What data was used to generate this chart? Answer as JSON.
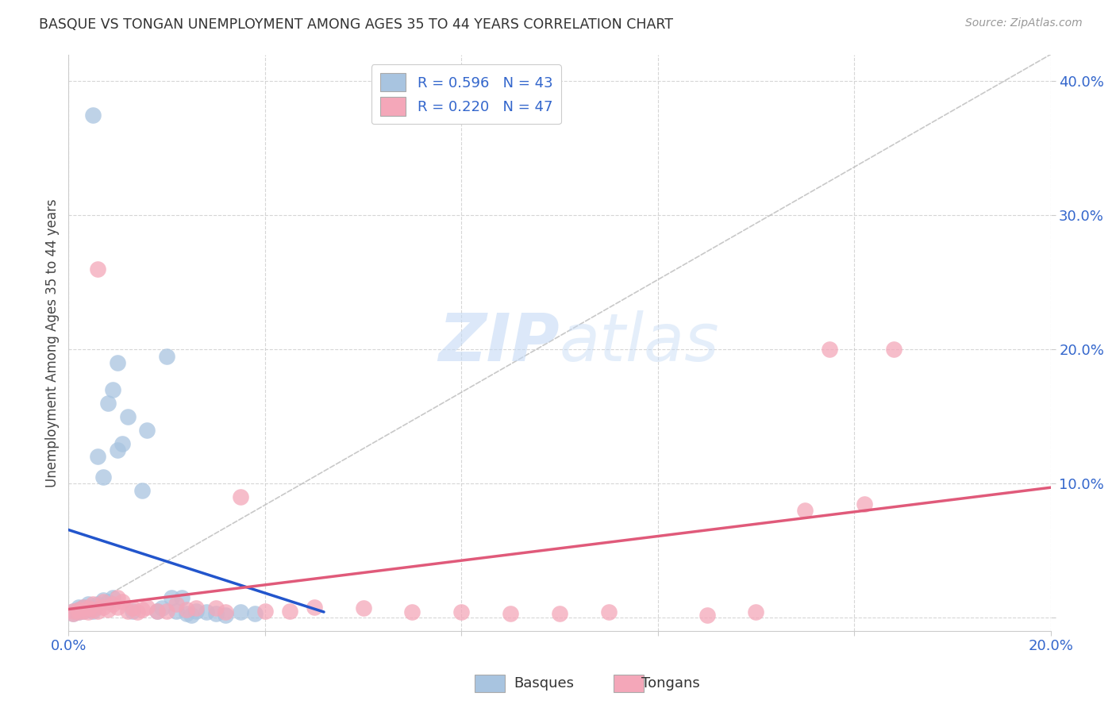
{
  "title": "BASQUE VS TONGAN UNEMPLOYMENT AMONG AGES 35 TO 44 YEARS CORRELATION CHART",
  "source": "Source: ZipAtlas.com",
  "ylabel": "Unemployment Among Ages 35 to 44 years",
  "xlim": [
    0.0,
    0.2
  ],
  "ylim": [
    -0.01,
    0.42
  ],
  "basque_color": "#a8c4e0",
  "basque_edge_color": "#7aafd4",
  "tongan_color": "#f4a7b9",
  "tongan_edge_color": "#e882a0",
  "basque_line_color": "#2255cc",
  "tongan_line_color": "#e05a7a",
  "ref_line_color": "#bbbbbb",
  "watermark_color": "#ddeeff",
  "background_color": "#ffffff",
  "grid_color": "#cccccc",
  "basque_x": [
    0.001,
    0.001,
    0.002,
    0.002,
    0.002,
    0.003,
    0.003,
    0.003,
    0.004,
    0.004,
    0.004,
    0.005,
    0.005,
    0.005,
    0.006,
    0.006,
    0.007,
    0.007,
    0.008,
    0.008,
    0.009,
    0.009,
    0.01,
    0.01,
    0.011,
    0.012,
    0.013,
    0.015,
    0.016,
    0.018,
    0.019,
    0.02,
    0.021,
    0.022,
    0.023,
    0.024,
    0.025,
    0.026,
    0.028,
    0.03,
    0.032,
    0.035,
    0.038
  ],
  "basque_y": [
    0.005,
    0.003,
    0.006,
    0.008,
    0.004,
    0.008,
    0.005,
    0.007,
    0.01,
    0.006,
    0.008,
    0.005,
    0.007,
    0.375,
    0.01,
    0.12,
    0.105,
    0.013,
    0.012,
    0.16,
    0.015,
    0.17,
    0.125,
    0.19,
    0.13,
    0.15,
    0.005,
    0.095,
    0.14,
    0.005,
    0.007,
    0.195,
    0.015,
    0.005,
    0.015,
    0.003,
    0.002,
    0.005,
    0.004,
    0.003,
    0.002,
    0.004,
    0.003
  ],
  "tongan_x": [
    0.001,
    0.001,
    0.002,
    0.002,
    0.003,
    0.003,
    0.004,
    0.004,
    0.005,
    0.005,
    0.006,
    0.006,
    0.007,
    0.007,
    0.008,
    0.009,
    0.01,
    0.01,
    0.011,
    0.012,
    0.013,
    0.014,
    0.015,
    0.016,
    0.018,
    0.02,
    0.022,
    0.024,
    0.026,
    0.03,
    0.032,
    0.035,
    0.04,
    0.045,
    0.05,
    0.06,
    0.07,
    0.08,
    0.09,
    0.1,
    0.11,
    0.13,
    0.14,
    0.15,
    0.155,
    0.162,
    0.168
  ],
  "tongan_y": [
    0.005,
    0.003,
    0.006,
    0.004,
    0.008,
    0.005,
    0.007,
    0.004,
    0.01,
    0.006,
    0.005,
    0.26,
    0.012,
    0.008,
    0.006,
    0.01,
    0.015,
    0.008,
    0.012,
    0.005,
    0.007,
    0.004,
    0.006,
    0.008,
    0.005,
    0.005,
    0.01,
    0.006,
    0.007,
    0.007,
    0.004,
    0.09,
    0.005,
    0.005,
    0.008,
    0.007,
    0.004,
    0.004,
    0.003,
    0.003,
    0.004,
    0.002,
    0.004,
    0.08,
    0.2,
    0.085,
    0.2
  ]
}
